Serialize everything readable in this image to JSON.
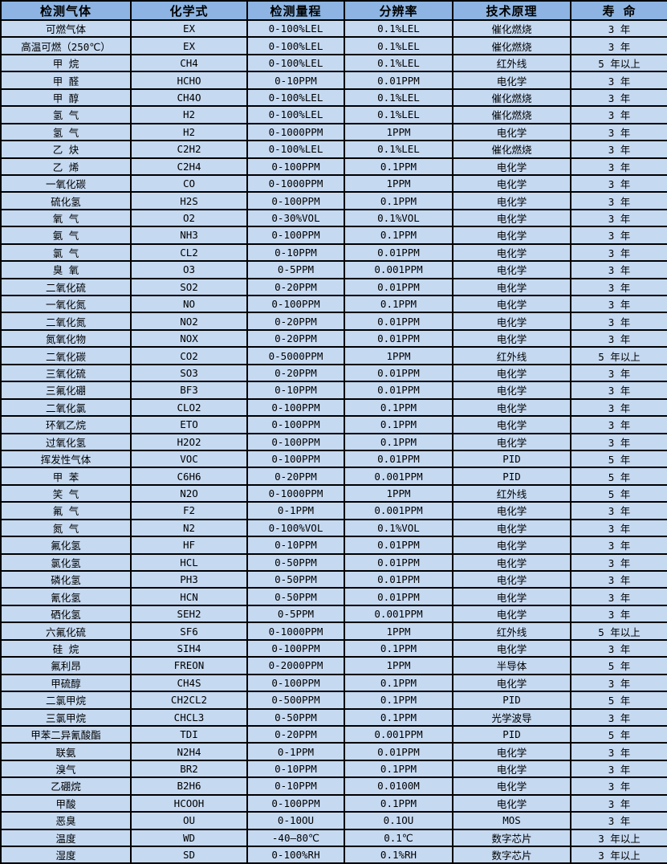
{
  "table": {
    "title": "gas-sensor-specification-table",
    "columns": [
      "检测气体",
      "化学式",
      "检测量程",
      "分辨率",
      "技术原理",
      "寿 命"
    ],
    "rows": [
      [
        "可燃气体",
        "EX",
        "0-100%LEL",
        "0.1%LEL",
        "催化燃烧",
        "3 年"
      ],
      [
        "高温可燃（250℃）",
        "EX",
        "0-100%LEL",
        "0.1%LEL",
        "催化燃烧",
        "3 年"
      ],
      [
        "甲 烷",
        "CH4",
        "0-100%LEL",
        "0.1%LEL",
        "红外线",
        "5 年以上"
      ],
      [
        "甲 醛",
        "HCHO",
        "0-10PPM",
        "0.01PPM",
        "电化学",
        "3 年"
      ],
      [
        "甲 醇",
        "CH4O",
        "0-100%LEL",
        "0.1%LEL",
        "催化燃烧",
        "3 年"
      ],
      [
        "氢 气",
        "H2",
        "0-100%LEL",
        "0.1%LEL",
        "催化燃烧",
        "3 年"
      ],
      [
        "氢 气",
        "H2",
        "0-1000PPM",
        "1PPM",
        "电化学",
        "3 年"
      ],
      [
        "乙 炔",
        "C2H2",
        "0-100%LEL",
        "0.1%LEL",
        "催化燃烧",
        "3 年"
      ],
      [
        "乙 烯",
        "C2H4",
        "0-100PPM",
        "0.1PPM",
        "电化学",
        "3 年"
      ],
      [
        "一氧化碳",
        "CO",
        "0-1000PPM",
        "1PPM",
        "电化学",
        "3 年"
      ],
      [
        "硫化氢",
        "H2S",
        "0-100PPM",
        "0.1PPM",
        "电化学",
        "3 年"
      ],
      [
        "氧 气",
        "O2",
        "0-30%VOL",
        "0.1%VOL",
        "电化学",
        "3 年"
      ],
      [
        "氨 气",
        "NH3",
        "0-100PPM",
        "0.1PPM",
        "电化学",
        "3 年"
      ],
      [
        "氯 气",
        "CL2",
        "0-10PPM",
        "0.01PPM",
        "电化学",
        "3 年"
      ],
      [
        "臭 氧",
        "O3",
        "0-5PPM",
        "0.001PPM",
        "电化学",
        "3 年"
      ],
      [
        "二氧化硫",
        "SO2",
        "0-20PPM",
        "0.01PPM",
        "电化学",
        "3 年"
      ],
      [
        "一氧化氮",
        "NO",
        "0-100PPM",
        "0.1PPM",
        "电化学",
        "3 年"
      ],
      [
        "二氧化氮",
        "NO2",
        "0-20PPM",
        "0.01PPM",
        "电化学",
        "3 年"
      ],
      [
        "氮氧化物",
        "NOX",
        "0-20PPM",
        "0.01PPM",
        "电化学",
        "3 年"
      ],
      [
        "二氧化碳",
        "CO2",
        "0-5000PPM",
        "1PPM",
        "红外线",
        "5 年以上"
      ],
      [
        "三氧化硫",
        "SO3",
        "0-20PPM",
        "0.01PPM",
        "电化学",
        "3 年"
      ],
      [
        "三氟化硼",
        "BF3",
        "0-10PPM",
        "0.01PPM",
        "电化学",
        "3 年"
      ],
      [
        "二氧化氯",
        "CLO2",
        "0-100PPM",
        "0.1PPM",
        "电化学",
        "3 年"
      ],
      [
        "环氧乙烷",
        "ETO",
        "0-100PPM",
        "0.1PPM",
        "电化学",
        "3 年"
      ],
      [
        "过氧化氢",
        "H2O2",
        "0-100PPM",
        "0.1PPM",
        "电化学",
        "3 年"
      ],
      [
        "挥发性气体",
        "VOC",
        "0-100PPM",
        "0.01PPM",
        "PID",
        "5 年"
      ],
      [
        "甲 苯",
        "C6H6",
        "0-20PPM",
        "0.001PPM",
        "PID",
        "5 年"
      ],
      [
        "笑 气",
        "N2O",
        "0-1000PPM",
        "1PPM",
        "红外线",
        "5 年"
      ],
      [
        "氟 气",
        "F2",
        "0-1PPM",
        "0.001PPM",
        "电化学",
        "3 年"
      ],
      [
        "氮 气",
        "N2",
        "0-100%VOL",
        "0.1%VOL",
        "电化学",
        "3 年"
      ],
      [
        "氟化氢",
        "HF",
        "0-10PPM",
        "0.01PPM",
        "电化学",
        "3 年"
      ],
      [
        "氯化氢",
        "HCL",
        "0-50PPM",
        "0.01PPM",
        "电化学",
        "3 年"
      ],
      [
        "磷化氢",
        "PH3",
        "0-50PPM",
        "0.01PPM",
        "电化学",
        "3 年"
      ],
      [
        "氰化氢",
        "HCN",
        "0-50PPM",
        "0.01PPM",
        "电化学",
        "3 年"
      ],
      [
        "硒化氢",
        "SEH2",
        "0-5PPM",
        "0.001PPM",
        "电化学",
        "3 年"
      ],
      [
        "六氟化硫",
        "SF6",
        "0-1000PPM",
        "1PPM",
        "红外线",
        "5 年以上"
      ],
      [
        "硅 烷",
        "SIH4",
        "0-100PPM",
        "0.1PPM",
        "电化学",
        "3 年"
      ],
      [
        "氟利昂",
        "FREON",
        "0-2000PPM",
        "1PPM",
        "半导体",
        "5 年"
      ],
      [
        "甲硫醇",
        "CH4S",
        "0-100PPM",
        "0.1PPM",
        "电化学",
        "3 年"
      ],
      [
        "二氯甲烷",
        "CH2CL2",
        "0-500PPM",
        "0.1PPM",
        "PID",
        "5 年"
      ],
      [
        "三氯甲烷",
        "CHCL3",
        "0-50PPM",
        "0.1PPM",
        "光学波导",
        "3 年"
      ],
      [
        "甲苯二异氰酸酯",
        "TDI",
        "0-20PPM",
        "0.001PPM",
        "PID",
        "5 年"
      ],
      [
        "联氨",
        "N2H4",
        "0-1PPM",
        "0.01PPM",
        "电化学",
        "3 年"
      ],
      [
        "溴气",
        "BR2",
        "0-10PPM",
        "0.1PPM",
        "电化学",
        "3 年"
      ],
      [
        "乙硼烷",
        "B2H6",
        "0-10PPM",
        "0.0100M",
        "电化学",
        "3 年"
      ],
      [
        "甲酸",
        "HCOOH",
        "0-100PPM",
        "0.1PPM",
        "电化学",
        "3 年"
      ],
      [
        "恶臭",
        "OU",
        "0-10OU",
        "0.1OU",
        "MOS",
        "3 年"
      ],
      [
        "温度",
        "WD",
        "-40—80℃",
        "0.1℃",
        "数字芯片",
        "3 年以上"
      ],
      [
        "湿度",
        "SD",
        "0-100%RH",
        "0.1%RH",
        "数字芯片",
        "3 年以上"
      ]
    ]
  },
  "colors": {
    "header_bg": "#8DB4E2",
    "row_bg": "#C5D9F1",
    "border": "#000000",
    "text": "#000000"
  }
}
